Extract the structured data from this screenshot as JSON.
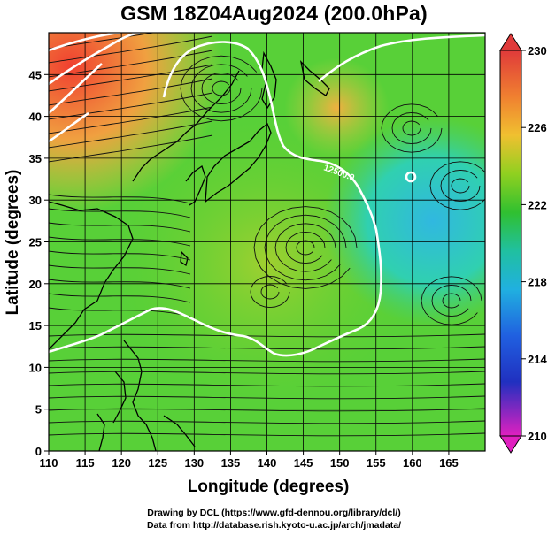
{
  "map": {
    "title": "GSM 18Z04Aug2024 (200.0hPa)",
    "xlabel": "Longitude (degrees)",
    "ylabel": "Latitude (degrees)",
    "x_ticks": [
      "110",
      "115",
      "120",
      "125",
      "130",
      "135",
      "140",
      "145",
      "150",
      "155",
      "160",
      "165"
    ],
    "y_ticks": [
      "0",
      "5",
      "10",
      "15",
      "20",
      "25",
      "30",
      "35",
      "40",
      "45"
    ],
    "contour_label": "12500.0",
    "colorbar": {
      "ticks": [
        "230",
        "226",
        "222",
        "218",
        "214",
        "210"
      ],
      "colors": [
        "#e03a3a",
        "#f0a030",
        "#30c030",
        "#20c0e0",
        "#2030c0",
        "#e020c0"
      ]
    },
    "credits": [
      "Drawing by DCL (https://www.gfd-dennou.org/library/dcl/)",
      "Data from http://database.rish.kyoto-u.ac.jp/arch/jmadata/"
    ]
  }
}
